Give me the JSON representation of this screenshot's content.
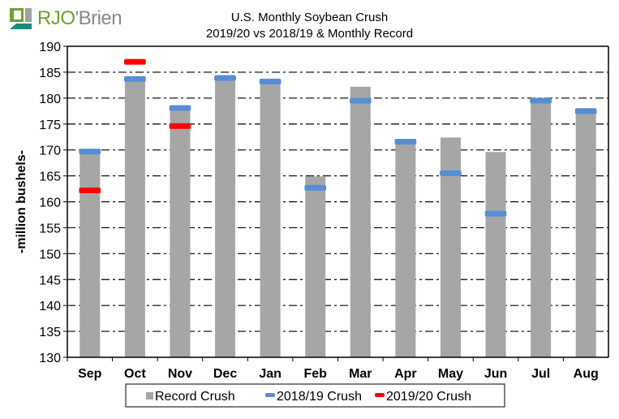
{
  "logo": {
    "brand_mark": "RJO",
    "brand_rest": "'Brien"
  },
  "chart_data": {
    "type": "bar",
    "title": "U.S. Monthly Soybean Crush",
    "subtitle": "2019/20 vs 2018/19 & Monthly Record",
    "xlabel": "",
    "ylabel": "-million bushels-",
    "ylim": [
      130,
      190
    ],
    "yticks": [
      130,
      135,
      140,
      145,
      150,
      155,
      160,
      165,
      170,
      175,
      180,
      185,
      190
    ],
    "grid": true,
    "legend_position": "bottom",
    "categories": [
      "Sep",
      "Oct",
      "Nov",
      "Dec",
      "Jan",
      "Feb",
      "Mar",
      "Apr",
      "May",
      "Jun",
      "Jul",
      "Aug"
    ],
    "series": [
      {
        "name": "Record Crush",
        "kind": "bar",
        "color": "#a6a6a6",
        "values": [
          169.4,
          183.4,
          177.8,
          183.8,
          182.9,
          164.9,
          182.2,
          171.2,
          172.4,
          169.6,
          179.2,
          177.2
        ]
      },
      {
        "name": "2018/19 Crush",
        "kind": "marker",
        "color": "#558ed5",
        "values": [
          169.7,
          183.7,
          178.1,
          183.9,
          183.2,
          162.7,
          179.5,
          171.6,
          165.5,
          157.7,
          179.5,
          177.5
        ]
      },
      {
        "name": "2019/20 Crush",
        "kind": "marker",
        "color": "#ff0000",
        "values": [
          162.2,
          187.0,
          174.6,
          null,
          null,
          null,
          null,
          null,
          null,
          null,
          null,
          null
        ]
      }
    ]
  }
}
